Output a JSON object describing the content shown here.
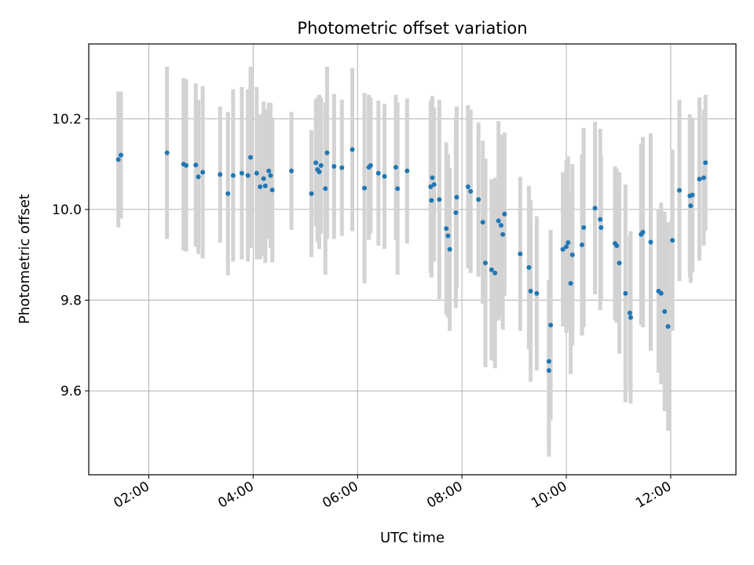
{
  "chart_data": {
    "type": "scatter",
    "title": "Photometric offset variation",
    "xlabel": "UTC time",
    "ylabel": "Photometric offset",
    "x_unit": "hours UTC",
    "xlim": [
      0.85,
      13.25
    ],
    "ylim": [
      9.415,
      10.365
    ],
    "grid": true,
    "x_ticks": [
      "02:00",
      "04:00",
      "06:00",
      "08:00",
      "10:00",
      "12:00"
    ],
    "y_ticks": [
      "9.6",
      "9.8",
      "10.0",
      "10.2"
    ],
    "colors": {
      "point": "#1f77b4",
      "errorbar": "#d3d3d3",
      "grid": "#b0b0b0"
    },
    "series": [
      {
        "x": [
          "01:25",
          "01:28",
          "02:21",
          "02:40",
          "02:43",
          "02:54",
          "02:57",
          "03:02",
          "03:22",
          "03:31",
          "03:37",
          "03:47",
          "03:54",
          "03:57",
          "04:04",
          "04:08",
          "04:12",
          "04:14",
          "04:18",
          "04:20",
          "04:22",
          "04:44",
          "05:07",
          "05:12",
          "05:14",
          "05:16",
          "05:18",
          "05:23",
          "05:25",
          "05:33",
          "05:42",
          "05:54",
          "06:08",
          "06:13",
          "06:15",
          "06:24",
          "06:31",
          "06:44",
          "06:46",
          "06:57",
          "07:24",
          "07:25",
          "07:26",
          "07:28",
          "07:34",
          "07:42",
          "07:44",
          "07:46",
          "07:53",
          "07:54",
          "08:07",
          "08:10",
          "08:19",
          "08:24",
          "08:27",
          "08:34",
          "08:38",
          "08:42",
          "08:45",
          "08:47",
          "08:49",
          "09:07",
          "09:17",
          "09:19",
          "09:26",
          "09:40",
          "09:40",
          "09:42",
          "09:56",
          "10:00",
          "10:02",
          "10:05",
          "10:07",
          "10:18",
          "10:20",
          "10:33",
          "10:39",
          "10:40",
          "10:56",
          "10:58",
          "11:01",
          "11:08",
          "11:13",
          "11:14",
          "11:26",
          "11:28",
          "11:37",
          "11:46",
          "11:49",
          "11:53",
          "11:57",
          "12:02",
          "12:10",
          "12:22",
          "12:23",
          "12:25",
          "12:33",
          "12:38",
          "12:40"
        ],
        "y": [
          10.11,
          10.12,
          10.125,
          10.1,
          10.097,
          10.098,
          10.072,
          10.082,
          10.077,
          10.035,
          10.075,
          10.08,
          10.075,
          10.115,
          10.08,
          10.05,
          10.068,
          10.052,
          10.085,
          10.075,
          10.043,
          10.085,
          10.035,
          10.103,
          10.088,
          10.083,
          10.097,
          10.046,
          10.125,
          10.095,
          10.092,
          10.132,
          10.047,
          10.093,
          10.097,
          10.08,
          10.073,
          10.093,
          10.046,
          10.085,
          10.05,
          10.02,
          10.07,
          10.055,
          10.022,
          9.958,
          9.942,
          9.912,
          9.993,
          10.027,
          10.05,
          10.04,
          10.022,
          9.972,
          9.882,
          9.867,
          9.86,
          9.975,
          9.965,
          9.945,
          9.99,
          9.902,
          9.872,
          9.82,
          9.815,
          9.645,
          9.665,
          9.745,
          9.912,
          9.918,
          9.927,
          9.837,
          9.9,
          9.922,
          9.96,
          10.003,
          9.978,
          9.96,
          9.925,
          9.92,
          9.882,
          9.815,
          9.772,
          9.762,
          9.945,
          9.95,
          9.928,
          9.82,
          9.815,
          9.775,
          9.742,
          9.932,
          10.042,
          10.03,
          10.008,
          10.032,
          10.067,
          10.07,
          10.103
        ],
        "y_err": [
          0.15,
          0.14,
          0.19,
          0.19,
          0.19,
          0.18,
          0.17,
          0.19,
          0.15,
          0.18,
          0.19,
          0.19,
          0.19,
          0.2,
          0.19,
          0.16,
          0.17,
          0.17,
          0.15,
          0.16,
          0.16,
          0.13,
          0.14,
          0.14,
          0.16,
          0.17,
          0.15,
          0.19,
          0.19,
          0.16,
          0.15,
          0.18,
          0.21,
          0.16,
          0.15,
          0.16,
          0.16,
          0.16,
          0.19,
          0.16,
          0.19,
          0.17,
          0.18,
          0.17,
          0.22,
          0.19,
          0.18,
          0.18,
          0.21,
          0.2,
          0.18,
          0.18,
          0.17,
          0.18,
          0.23,
          0.2,
          0.21,
          0.22,
          0.2,
          0.21,
          0.18,
          0.17,
          0.18,
          0.2,
          0.17,
          0.19,
          0.18,
          0.21,
          0.17,
          0.19,
          0.19,
          0.2,
          0.2,
          0.2,
          0.22,
          0.19,
          0.2,
          0.16,
          0.17,
          0.17,
          0.2,
          0.24,
          0.17,
          0.19,
          0.2,
          0.21,
          0.24,
          0.18,
          0.2,
          0.22,
          0.23,
          0.2,
          0.2,
          0.18,
          0.17,
          0.17,
          0.18,
          0.15,
          0.15
        ]
      }
    ]
  }
}
